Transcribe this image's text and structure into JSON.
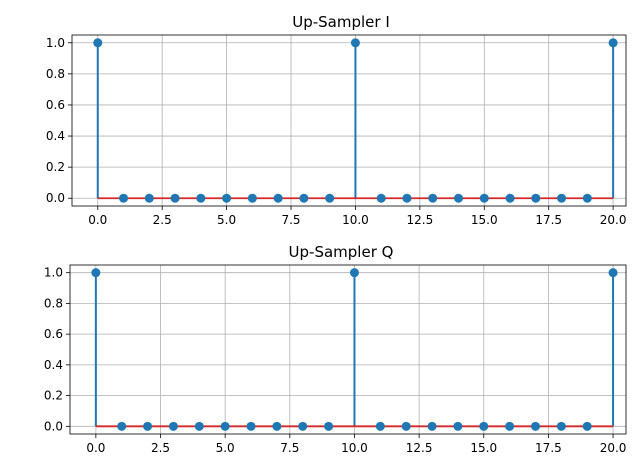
{
  "figure": {
    "background": "#ffffff",
    "stem_color": "#1f77b4",
    "baseline_color": "#d62728",
    "grid_color": "#b0b0b0"
  },
  "chart_data": [
    {
      "type": "stem",
      "title": "Up-Sampler I",
      "xlabel": "",
      "ylabel": "",
      "x": [
        0,
        1,
        2,
        3,
        4,
        5,
        6,
        7,
        8,
        9,
        10,
        11,
        12,
        13,
        14,
        15,
        16,
        17,
        18,
        19,
        20
      ],
      "values": [
        1,
        0,
        0,
        0,
        0,
        0,
        0,
        0,
        0,
        0,
        1,
        0,
        0,
        0,
        0,
        0,
        0,
        0,
        0,
        0,
        1
      ],
      "xlim": [
        -1,
        20.5
      ],
      "ylim": [
        -0.05,
        1.05
      ],
      "xticks": [
        0.0,
        2.5,
        5.0,
        7.5,
        10.0,
        12.5,
        15.0,
        17.5,
        20.0
      ],
      "xtick_labels": [
        "0.0",
        "2.5",
        "5.0",
        "7.5",
        "10.0",
        "12.5",
        "15.0",
        "17.5",
        "20.0"
      ],
      "yticks": [
        0.0,
        0.2,
        0.4,
        0.6,
        0.8,
        1.0
      ],
      "ytick_labels": [
        "0.0",
        "0.2",
        "0.4",
        "0.6",
        "0.8",
        "1.0"
      ],
      "baseline": 0,
      "grid": true
    },
    {
      "type": "stem",
      "title": "Up-Sampler Q",
      "xlabel": "",
      "ylabel": "",
      "x": [
        0,
        1,
        2,
        3,
        4,
        5,
        6,
        7,
        8,
        9,
        10,
        11,
        12,
        13,
        14,
        15,
        16,
        17,
        18,
        19,
        20
      ],
      "values": [
        1,
        0,
        0,
        0,
        0,
        0,
        0,
        0,
        0,
        0,
        1,
        0,
        0,
        0,
        0,
        0,
        0,
        0,
        0,
        0,
        1
      ],
      "xlim": [
        -1,
        20.5
      ],
      "ylim": [
        -0.05,
        1.05
      ],
      "xticks": [
        0.0,
        2.5,
        5.0,
        7.5,
        10.0,
        12.5,
        15.0,
        17.5,
        20.0
      ],
      "xtick_labels": [
        "0.0",
        "2.5",
        "5.0",
        "7.5",
        "10.0",
        "12.5",
        "15.0",
        "17.5",
        "20.0"
      ],
      "yticks": [
        0.0,
        0.2,
        0.4,
        0.6,
        0.8,
        1.0
      ],
      "ytick_labels": [
        "0.0",
        "0.2",
        "0.4",
        "0.6",
        "0.8",
        "1.0"
      ],
      "baseline": 0,
      "grid": true
    }
  ]
}
